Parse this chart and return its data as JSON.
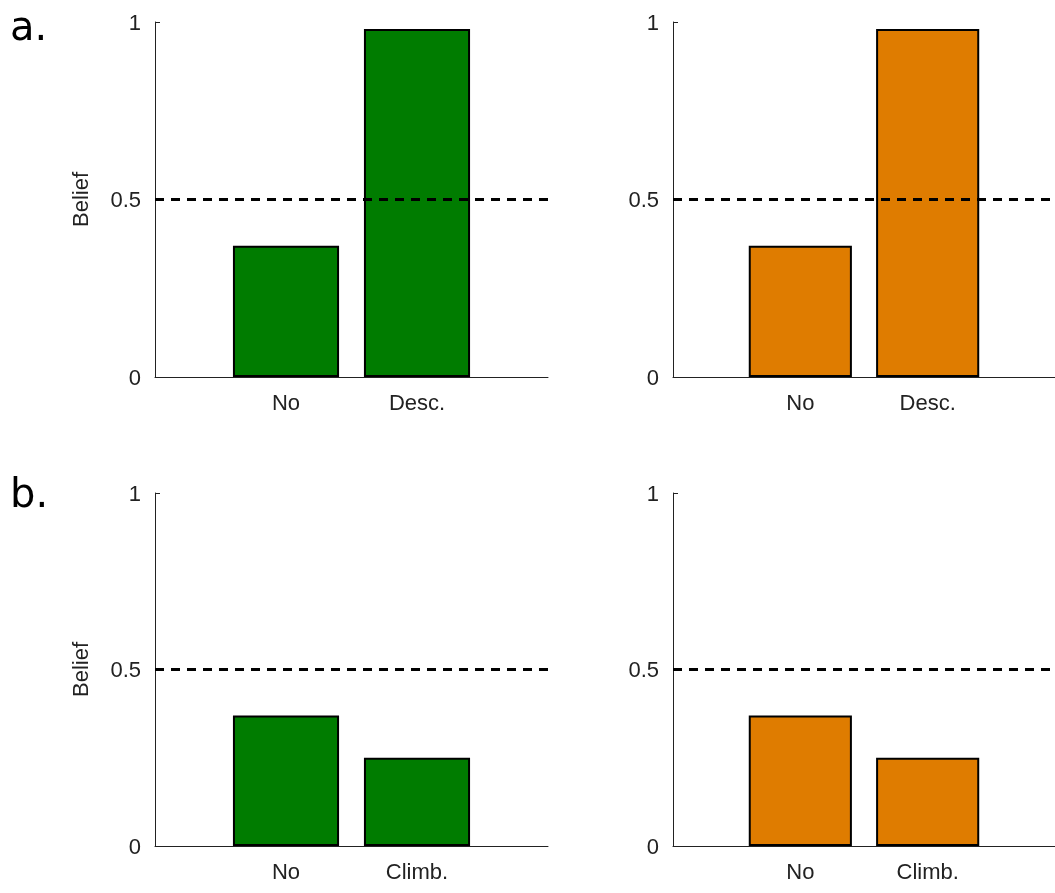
{
  "chart_data": [
    {
      "type": "bar",
      "annotations": [
        "a."
      ],
      "ylabel": "Belief",
      "categories": [
        "No",
        "Desc."
      ],
      "series": [
        {
          "color": "#007c00",
          "values": [
            0.37,
            0.98
          ]
        }
      ],
      "ylim": [
        0,
        1
      ],
      "yticks": [
        0,
        0.5,
        1
      ],
      "grid": false,
      "ref_lines": [
        {
          "axis": "y",
          "value": 0.5,
          "color": "#000000",
          "line_style": "dashed"
        }
      ]
    },
    {
      "type": "bar",
      "categories": [
        "No",
        "Desc."
      ],
      "series": [
        {
          "color": "#df7c00",
          "values": [
            0.37,
            0.98
          ]
        }
      ],
      "ylim": [
        0,
        1
      ],
      "yticks": [
        0,
        0.5,
        1
      ],
      "grid": false,
      "ref_lines": [
        {
          "axis": "y",
          "value": 0.5,
          "color": "#000000",
          "line_style": "dashed"
        }
      ]
    },
    {
      "type": "bar",
      "annotations": [
        "b."
      ],
      "ylabel": "Belief",
      "categories": [
        "No",
        "Climb."
      ],
      "series": [
        {
          "color": "#007c00",
          "values": [
            0.37,
            0.25
          ]
        }
      ],
      "ylim": [
        0,
        1
      ],
      "yticks": [
        0,
        0.5,
        1
      ],
      "grid": false,
      "ref_lines": [
        {
          "axis": "y",
          "value": 0.5,
          "color": "#000000",
          "line_style": "dashed"
        }
      ]
    },
    {
      "type": "bar",
      "categories": [
        "No",
        "Climb."
      ],
      "series": [
        {
          "color": "#df7c00",
          "values": [
            0.37,
            0.25
          ]
        }
      ],
      "ylim": [
        0,
        1
      ],
      "yticks": [
        0,
        0.5,
        1
      ],
      "grid": false,
      "ref_lines": [
        {
          "axis": "y",
          "value": 0.5,
          "color": "#000000",
          "line_style": "dashed"
        }
      ]
    }
  ]
}
